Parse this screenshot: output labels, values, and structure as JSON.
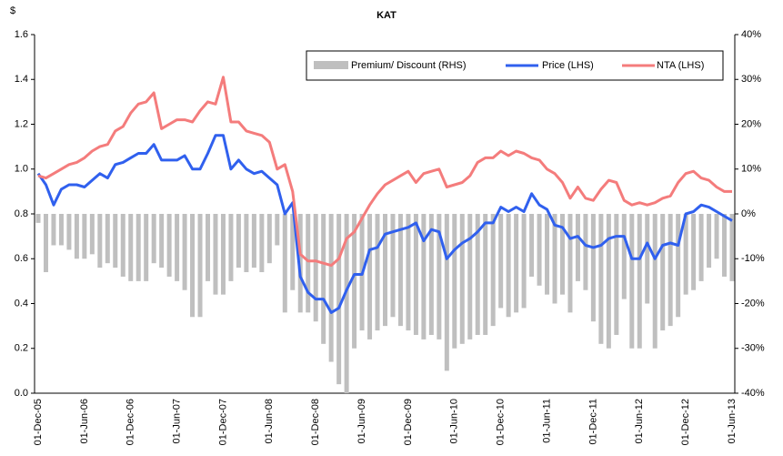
{
  "chart_data": {
    "type": "bar",
    "title": "KAT",
    "y_label": "$",
    "categories": [
      "01-Dec-05",
      null,
      null,
      null,
      null,
      null,
      "01-Jun-06",
      null,
      null,
      null,
      null,
      null,
      "01-Dec-06",
      null,
      null,
      null,
      null,
      null,
      "01-Jun-07",
      null,
      null,
      null,
      null,
      null,
      "01-Dec-07",
      null,
      null,
      null,
      null,
      null,
      "01-Jun-08",
      null,
      null,
      null,
      null,
      null,
      "01-Dec-08",
      null,
      null,
      null,
      null,
      null,
      "01-Jun-09",
      null,
      null,
      null,
      null,
      null,
      "01-Dec-09",
      null,
      null,
      null,
      null,
      null,
      "01-Jun-10",
      null,
      null,
      null,
      null,
      null,
      "01-Dec-10",
      null,
      null,
      null,
      null,
      null,
      "01-Jun-11",
      null,
      null,
      null,
      null,
      null,
      "01-Dec-11",
      null,
      null,
      null,
      null,
      null,
      "01-Jun-12",
      null,
      null,
      null,
      null,
      null,
      "01-Dec-12",
      null,
      null,
      null,
      null,
      null,
      "01-Jun-13"
    ],
    "series": [
      {
        "name": "Premium/ Discount (RHS)",
        "type": "bar",
        "axis": "y2",
        "color": "#bfbfbf",
        "values": [
          -2,
          -13,
          -7,
          -7,
          -8,
          -10,
          -10,
          -9,
          -12,
          -11,
          -12,
          -14,
          -15,
          -15,
          -15,
          -11,
          -12,
          -14,
          -15,
          -17,
          -23,
          -23,
          -15,
          -18,
          -18,
          -15,
          -12,
          -13,
          -12,
          -13,
          -11,
          -7,
          -22,
          -17,
          -22,
          -22,
          -24,
          -29,
          -33,
          -38,
          -40,
          -30,
          -26,
          -28,
          -26,
          -25,
          -23,
          -25,
          -26,
          -27,
          -28,
          -27,
          -28,
          -35,
          -30,
          -29,
          -28,
          -27,
          -27,
          -25,
          -21,
          -23,
          -22,
          -21,
          -14,
          -16,
          -18,
          -20,
          -18,
          -22,
          -15,
          -17,
          -24,
          -29,
          -30,
          -27,
          -19,
          -30,
          -30,
          -20,
          -30,
          -26,
          -25,
          -23,
          -18,
          -17,
          -15,
          -12,
          -10,
          -14,
          -15
        ]
      },
      {
        "name": "Price (LHS)",
        "type": "line",
        "color": "#3060ee",
        "values": [
          0.98,
          0.93,
          0.84,
          0.91,
          0.93,
          0.93,
          0.92,
          0.95,
          0.98,
          0.96,
          1.02,
          1.03,
          1.05,
          1.07,
          1.07,
          1.11,
          1.04,
          1.04,
          1.04,
          1.06,
          1.0,
          1.0,
          1.07,
          1.15,
          1.15,
          1.0,
          1.04,
          1.0,
          0.98,
          0.99,
          0.96,
          0.93,
          0.8,
          0.85,
          0.52,
          0.45,
          0.42,
          0.42,
          0.36,
          0.38,
          0.46,
          0.53,
          0.53,
          0.64,
          0.65,
          0.71,
          0.72,
          0.73,
          0.74,
          0.76,
          0.68,
          0.73,
          0.72,
          0.6,
          0.64,
          0.67,
          0.69,
          0.72,
          0.76,
          0.76,
          0.83,
          0.81,
          0.83,
          0.81,
          0.89,
          0.84,
          0.82,
          0.75,
          0.74,
          0.69,
          0.7,
          0.66,
          0.65,
          0.66,
          0.69,
          0.7,
          0.7,
          0.6,
          0.6,
          0.67,
          0.6,
          0.66,
          0.67,
          0.66,
          0.8,
          0.81,
          0.84,
          0.83,
          0.81,
          0.79,
          0.77
        ]
      },
      {
        "name": "NTA (LHS)",
        "type": "line",
        "color": "#f47c7c",
        "values": [
          0.97,
          0.96,
          0.98,
          1.0,
          1.02,
          1.03,
          1.05,
          1.08,
          1.1,
          1.11,
          1.17,
          1.19,
          1.25,
          1.29,
          1.3,
          1.34,
          1.18,
          1.2,
          1.22,
          1.22,
          1.21,
          1.26,
          1.3,
          1.29,
          1.41,
          1.21,
          1.21,
          1.17,
          1.16,
          1.15,
          1.12,
          1.0,
          1.02,
          0.9,
          0.62,
          0.59,
          0.59,
          0.58,
          0.57,
          0.6,
          0.69,
          0.72,
          0.78,
          0.84,
          0.89,
          0.93,
          0.95,
          0.97,
          0.99,
          0.94,
          0.98,
          0.99,
          1.0,
          0.92,
          0.93,
          0.94,
          0.97,
          1.03,
          1.05,
          1.05,
          1.08,
          1.06,
          1.08,
          1.07,
          1.05,
          1.04,
          1.0,
          0.98,
          0.94,
          0.87,
          0.92,
          0.87,
          0.86,
          0.91,
          0.95,
          0.94,
          0.86,
          0.84,
          0.85,
          0.84,
          0.85,
          0.87,
          0.88,
          0.94,
          0.98,
          0.99,
          0.96,
          0.95,
          0.92,
          0.9,
          0.9
        ]
      }
    ],
    "ylim": [
      0,
      1.6
    ],
    "yticks": [
      {
        "value": 0,
        "label": "0.0"
      },
      0.2,
      0.4,
      0.6,
      0.8,
      {
        "value": 1,
        "label": "1.0"
      },
      1.2,
      1.4,
      1.6
    ],
    "y2lim": [
      -40,
      40
    ],
    "y2ticks": [
      {
        "value": -40,
        "label": "-40%"
      },
      {
        "value": -30,
        "label": "-30%"
      },
      {
        "value": -20,
        "label": "-20%"
      },
      {
        "value": -10,
        "label": "-10%"
      },
      {
        "value": 0,
        "label": "0%"
      },
      {
        "value": 10,
        "label": "10%"
      },
      {
        "value": 20,
        "label": "20%"
      },
      {
        "value": 30,
        "label": "30%"
      },
      {
        "value": 40,
        "label": "40%"
      }
    ],
    "legend": "top-right"
  }
}
